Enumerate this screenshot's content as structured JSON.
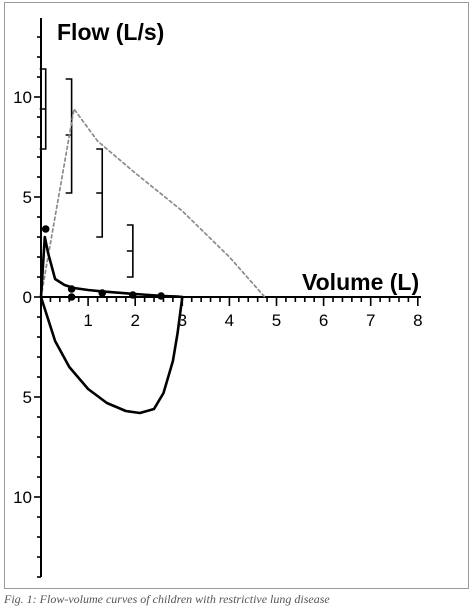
{
  "chart_data": {
    "type": "line",
    "ylabel": "Flow (L/s)",
    "xlabel": "Volume (L)",
    "xlim": [
      0,
      8
    ],
    "ylim": [
      -14,
      14
    ],
    "x_ticks": [
      "1",
      "2",
      "3",
      "4",
      "5",
      "6",
      "7",
      "8"
    ],
    "y_ticks_upper": [
      "0",
      "5",
      "10"
    ],
    "y_ticks_lower": [
      "5",
      "10"
    ],
    "grid": false,
    "legend": "none",
    "series": [
      {
        "style": "dotted-gray",
        "color": "#8a8a8a",
        "x": [
          0.0,
          0.7,
          1.2,
          2.0,
          3.0,
          4.0,
          4.75
        ],
        "y": [
          0.0,
          9.4,
          7.8,
          6.2,
          4.3,
          2.0,
          0.0
        ]
      },
      {
        "style": "solid-black",
        "color": "#000000",
        "x": [
          0.0,
          0.08,
          0.15,
          0.3,
          0.5,
          0.7,
          1.0,
          1.3,
          1.6,
          2.0,
          2.3,
          2.6,
          2.9,
          3.0
        ],
        "y": [
          0.0,
          3.0,
          2.2,
          0.9,
          0.6,
          0.45,
          0.35,
          0.28,
          0.22,
          0.15,
          0.1,
          0.05,
          0.02,
          0.0
        ]
      },
      {
        "style": "solid-black",
        "color": "#000000",
        "x": [
          0.0,
          0.3,
          0.6,
          1.0,
          1.4,
          1.8,
          2.1,
          2.4,
          2.6,
          2.8,
          2.9,
          3.0
        ],
        "y": [
          0.0,
          -2.2,
          -3.5,
          -4.6,
          -5.3,
          -5.7,
          -5.8,
          -5.6,
          -4.8,
          -3.2,
          -1.8,
          0.0
        ]
      }
    ],
    "points": [
      {
        "x": 0.1,
        "y": 3.4
      },
      {
        "x": 0.65,
        "y": 0.4
      },
      {
        "x": 0.65,
        "y": 0.0
      },
      {
        "x": 1.3,
        "y": 0.2
      },
      {
        "x": 1.95,
        "y": 0.1
      },
      {
        "x": 2.55,
        "y": 0.05
      }
    ],
    "error_bars": [
      {
        "x": 0.1,
        "low": 7.4,
        "high": 11.4,
        "mid": 9.4
      },
      {
        "x": 0.65,
        "low": 5.2,
        "high": 10.9,
        "mid": 8.1
      },
      {
        "x": 1.3,
        "low": 3.0,
        "high": 7.4,
        "mid": 5.2
      },
      {
        "x": 1.95,
        "low": 1.0,
        "high": 3.6,
        "mid": 2.3
      }
    ]
  },
  "caption": "Fig. 1: Flow-volume curves of children with restrictive lung disease"
}
